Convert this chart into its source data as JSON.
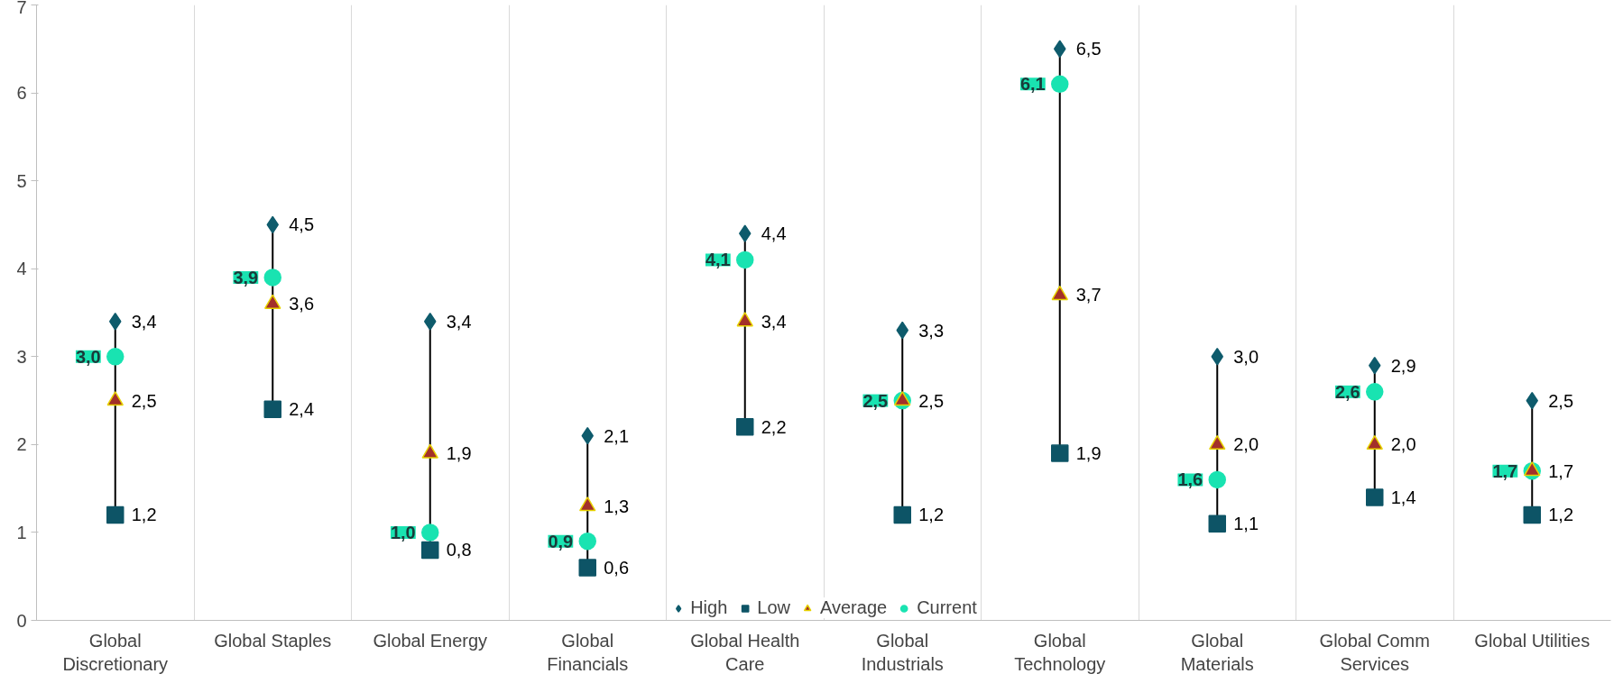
{
  "chart_data": {
    "type": "scatter",
    "categories": [
      "Global\nDiscretionary",
      "Global Staples",
      "Global Energy",
      "Global\nFinancials",
      "Global Health\nCare",
      "Global\nIndustrials",
      "Global\nTechnology",
      "Global\nMaterials",
      "Global Comm\nServices",
      "Global Utilities"
    ],
    "series": [
      {
        "name": "High",
        "color": "#0e5b6c",
        "marker": "diamond",
        "values": [
          3.4,
          4.5,
          3.4,
          2.1,
          4.4,
          3.3,
          6.5,
          3.0,
          2.9,
          2.5
        ],
        "value_labels": [
          "3,4",
          "4,5",
          "3,4",
          "2,1",
          "4,4",
          "3,3",
          "6,5",
          "3,0",
          "2,9",
          "2,5"
        ]
      },
      {
        "name": "Low",
        "color": "#0d5466",
        "marker": "square",
        "values": [
          1.2,
          2.4,
          0.8,
          0.6,
          2.2,
          1.2,
          1.9,
          1.1,
          1.4,
          1.2
        ],
        "value_labels": [
          "1,2",
          "2,4",
          "0,8",
          "0,6",
          "2,2",
          "1,2",
          "1,9",
          "1,1",
          "1,4",
          "1,2"
        ]
      },
      {
        "name": "Average",
        "color": "#a3302a",
        "marker": "triangle",
        "values": [
          2.5,
          3.6,
          1.9,
          1.3,
          3.4,
          2.5,
          3.7,
          2.0,
          2.0,
          1.7
        ],
        "value_labels": [
          "2,5",
          "3,6",
          "1,9",
          "1,3",
          "3,4",
          "2,5",
          "3,7",
          "2,0",
          "2,0",
          "1,7"
        ]
      },
      {
        "name": "Current",
        "color": "#19e3b1",
        "marker": "circle",
        "values": [
          3.0,
          3.9,
          1.0,
          0.9,
          4.1,
          2.5,
          6.1,
          1.6,
          2.6,
          1.7
        ],
        "value_labels": [
          "3,0",
          "3,9",
          "1,0",
          "0,9",
          "4,1",
          "2,5",
          "6,1",
          "1,6",
          "2,6",
          "1,7"
        ]
      }
    ],
    "ylim": [
      0,
      7
    ],
    "yticks": [
      0,
      1,
      2,
      3,
      4,
      5,
      6,
      7
    ],
    "grid": "x",
    "legend": "bottom"
  }
}
